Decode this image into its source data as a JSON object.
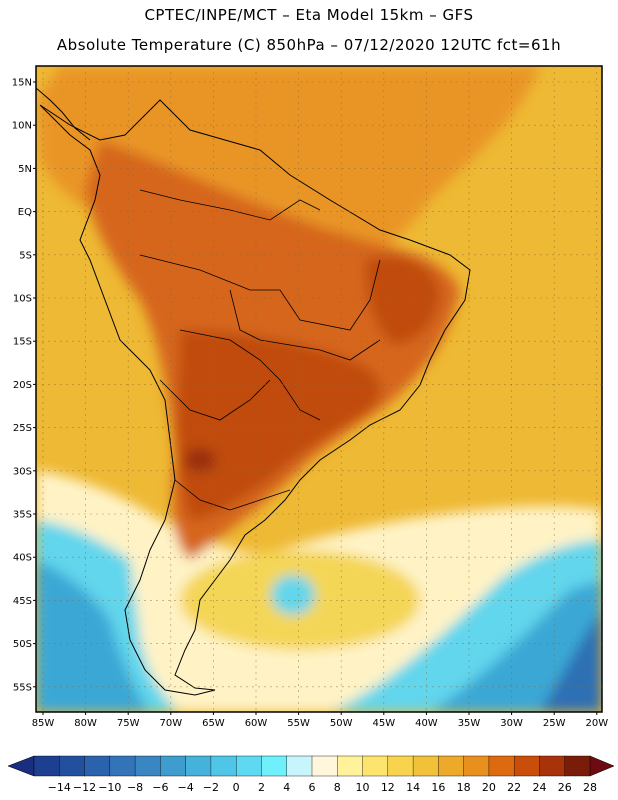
{
  "header": {
    "line1": "CPTEC/INPE/MCT –  Eta Model 15km – GFS",
    "line2": "Absolute Temperature (C) 850hPa – 07/12/2020 12UTC fct=61h"
  },
  "axes": {
    "lat_labels": [
      "15N",
      "10N",
      "5N",
      "EQ",
      "5S",
      "10S",
      "15S",
      "20S",
      "25S",
      "30S",
      "35S",
      "40S",
      "45S",
      "50S",
      "55S"
    ],
    "lon_labels": [
      "85W",
      "80W",
      "75W",
      "70W",
      "65W",
      "60W",
      "55W",
      "50W",
      "45W",
      "40W",
      "35W",
      "30W",
      "25W",
      "20W"
    ]
  },
  "colorbar": {
    "labels": [
      "-14",
      "-12",
      "-10",
      "-8",
      "-6",
      "-4",
      "-2",
      "0",
      "2",
      "4",
      "6",
      "8",
      "10",
      "12",
      "14",
      "16",
      "18",
      "20",
      "22",
      "24",
      "26",
      "28"
    ],
    "colors": [
      "#1c3f8f",
      "#234f9f",
      "#2b62ad",
      "#3374b8",
      "#3a86c2",
      "#3f9ccf",
      "#45b2dc",
      "#4fc6e8",
      "#5fd9f2",
      "#6ff0fa",
      "#c8f4fb",
      "#fff6dc",
      "#fff29a",
      "#fde46e",
      "#f8d44e",
      "#f1c13a",
      "#eca92a",
      "#e8901e",
      "#de6a0f",
      "#c84e0a",
      "#a8320a",
      "#7a1c0a"
    ],
    "end_low": "#1a2e80",
    "end_high": "#6e0a12"
  },
  "regions": {
    "ocean_warm": "#eeb934",
    "tropics_orange": "#e99526",
    "land_hot": "#d6661a",
    "land_hotter": "#c04b10",
    "core_hottest": "#9a2e0e",
    "mid_yellow": "#f4d657",
    "pale_band": "#fff3c6",
    "cold_cyan": "#62d6ec",
    "cold_blue": "#3aa7d5",
    "cold_deep": "#2d6fb4"
  }
}
